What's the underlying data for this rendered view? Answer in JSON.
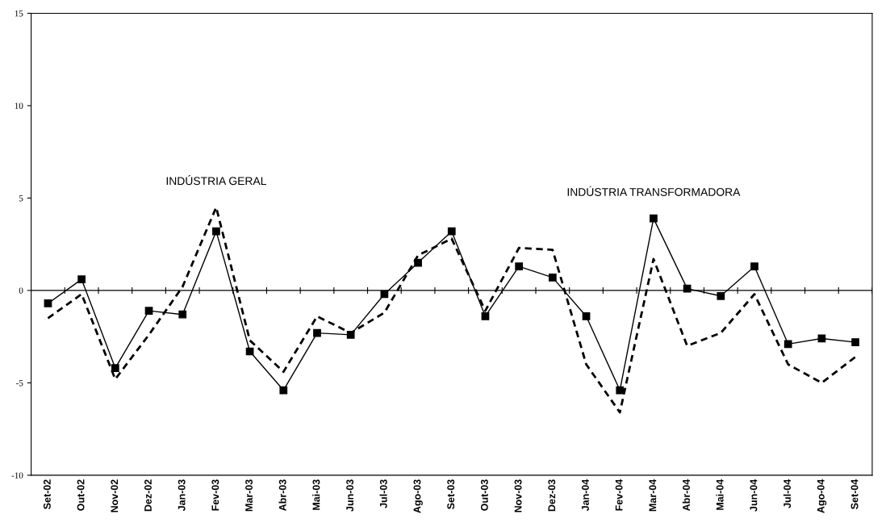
{
  "chart_data": {
    "type": "line",
    "categories": [
      "Set-02",
      "Out-02",
      "Nov-02",
      "Dez-02",
      "Jan-03",
      "Fev-03",
      "Mar-03",
      "Abr-03",
      "Mai-03",
      "Jun-03",
      "Jul-03",
      "Ago-03",
      "Set-03",
      "Out-03",
      "Nov-03",
      "Dez-03",
      "Jan-04",
      "Fev-04",
      "Mar-04",
      "Abr-04",
      "Mai-04",
      "Jun-04",
      "Jul-04",
      "Ago-04",
      "Set-04"
    ],
    "series": [
      {
        "name": "INDÚSTRIA GERAL",
        "color": "#000000",
        "line_style": "dashed",
        "marker": "none",
        "values": [
          -1.5,
          -0.2,
          -4.8,
          -2.4,
          0.2,
          4.5,
          -2.7,
          -4.4,
          -1.4,
          -2.3,
          -1.2,
          1.9,
          2.8,
          -1.1,
          2.3,
          2.2,
          -4.0,
          -6.6,
          1.7,
          -3.0,
          -2.3,
          -0.2,
          -4.0,
          -5.0,
          -3.6
        ]
      },
      {
        "name": "INDÚSTRIA TRANSFORMADORA",
        "color": "#000000",
        "line_style": "solid",
        "marker": "square",
        "values": [
          -0.7,
          0.6,
          -4.2,
          -1.1,
          -1.3,
          3.2,
          -3.3,
          -5.4,
          -2.3,
          -2.4,
          -0.2,
          1.5,
          3.2,
          -1.4,
          1.3,
          0.7,
          -1.4,
          -5.4,
          3.9,
          0.1,
          -0.3,
          1.3,
          -2.9,
          -2.6,
          -2.8
        ]
      }
    ],
    "ylim": [
      -10,
      15
    ],
    "yticks": [
      -10,
      -5,
      0,
      5,
      10,
      15
    ],
    "ref_lines": [
      {
        "axis": "y",
        "value": 0,
        "color": "#000000"
      }
    ],
    "grid": false,
    "legend": false
  }
}
